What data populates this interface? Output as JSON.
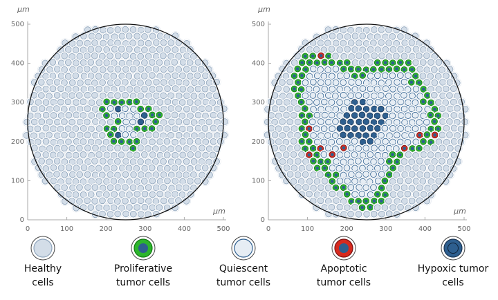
{
  "panels": [
    {
      "xlim": [
        0,
        500
      ],
      "ylim": [
        0,
        500
      ],
      "xticks": [
        0,
        100,
        200,
        300,
        400,
        500
      ],
      "yticks": [
        0,
        100,
        200,
        300,
        400,
        500
      ],
      "x_unit": "μm",
      "y_unit": "μm"
    },
    {
      "xlim": [
        0,
        500
      ],
      "ylim": [
        0,
        500
      ],
      "xticks": [
        0,
        100,
        200,
        300,
        400,
        500
      ],
      "yticks": [
        0,
        100,
        200,
        300,
        400,
        500
      ],
      "x_unit": "μm",
      "y_unit": "μm"
    }
  ],
  "legend": [
    {
      "lines": [
        "Healthy",
        "cells"
      ]
    },
    {
      "lines": [
        "Proliferative",
        "tumor cells"
      ]
    },
    {
      "lines": [
        "Quiescent",
        "tumor cells"
      ]
    },
    {
      "lines": [
        "Apoptotic",
        "tumor cells"
      ]
    },
    {
      "lines": [
        "Hypoxic tumor",
        "cells"
      ]
    }
  ]
}
